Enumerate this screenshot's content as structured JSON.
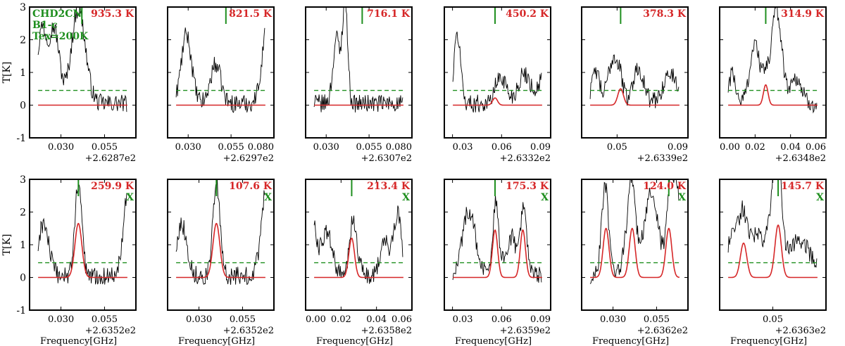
{
  "figure": {
    "annotation_lines": [
      "CHD2CN",
      "B1-c",
      "Tex=200K"
    ],
    "annotation_color": "#1f8f1f",
    "model_color": "#d62728",
    "noise_color": "#1f8f1f",
    "data_color": "#000000",
    "ylabel": "T[K]",
    "xlabel": "Frequency[GHz]",
    "excluded_mark": "X"
  },
  "chart_data": [
    {
      "type": "line",
      "energy": "935.3 K",
      "excluded": false,
      "xlim": [
        0.012,
        0.073
      ],
      "xticks": [
        0.03,
        0.055
      ],
      "xtick_labels": [
        "0.030",
        "0.055"
      ],
      "offset": "+2.6287e2",
      "ylim": [
        -1,
        3
      ],
      "yticks": [
        -1,
        0,
        1,
        2,
        3
      ],
      "noise_level": 0.45,
      "line_marker_x": 0.042,
      "model": [],
      "spectrum_profile": "n1"
    },
    {
      "type": "line",
      "energy": "821.5 K",
      "excluded": false,
      "xlim": [
        0.018,
        0.08
      ],
      "xticks": [
        0.03,
        0.055,
        0.08
      ],
      "xtick_labels": [
        "0.030",
        "0.055",
        "0.080"
      ],
      "offset": "+2.6297e2",
      "ylim": [
        -1,
        3
      ],
      "yticks": [
        -1,
        0,
        1,
        2,
        3
      ],
      "noise_level": 0.45,
      "line_marker_x": 0.052,
      "model": [],
      "spectrum_profile": "n2"
    },
    {
      "type": "line",
      "energy": "716.1 K",
      "excluded": false,
      "xlim": [
        0.018,
        0.08
      ],
      "xticks": [
        0.03,
        0.055,
        0.08
      ],
      "xtick_labels": [
        "0.030",
        "0.055",
        "0.080"
      ],
      "offset": "+2.6307e2",
      "ylim": [
        -1,
        3
      ],
      "yticks": [
        -1,
        0,
        1,
        2,
        3
      ],
      "noise_level": 0.45,
      "line_marker_x": 0.051,
      "model": [],
      "spectrum_profile": "n3"
    },
    {
      "type": "line",
      "energy": "450.2 K",
      "excluded": false,
      "xlim": [
        0.025,
        0.09
      ],
      "xticks": [
        0.03,
        0.06,
        0.09
      ],
      "xtick_labels": [
        "0.03",
        "0.06",
        "0.09"
      ],
      "offset": "+2.6332e2",
      "ylim": [
        -1,
        3
      ],
      "yticks": [
        -1,
        0,
        1,
        2,
        3
      ],
      "noise_level": 0.45,
      "line_marker_x": 0.056,
      "model": [
        {
          "center": 0.056,
          "height": 0.22,
          "sigma": 0.0015
        }
      ],
      "spectrum_profile": "n4"
    },
    {
      "type": "line",
      "energy": "378.3 K",
      "excluded": false,
      "xlim": [
        0.03,
        0.09
      ],
      "xticks": [
        0.05,
        0.09
      ],
      "xtick_labels": [
        "0.05",
        "0.09"
      ],
      "offset": "+2.6339e2",
      "ylim": [
        -1,
        3
      ],
      "yticks": [
        -1,
        0,
        1,
        2,
        3
      ],
      "noise_level": 0.45,
      "line_marker_x": 0.052,
      "model": [
        {
          "center": 0.052,
          "height": 0.5,
          "sigma": 0.0016
        }
      ],
      "spectrum_profile": "n5"
    },
    {
      "type": "line",
      "energy": "314.9 K",
      "excluded": false,
      "xlim": [
        0.0,
        0.06
      ],
      "xticks": [
        0.0,
        0.02,
        0.04,
        0.06
      ],
      "xtick_labels": [
        "0.00",
        "0.02",
        "0.04",
        "0.06"
      ],
      "offset": "+2.6348e2",
      "ylim": [
        -1,
        3
      ],
      "yticks": [
        -1,
        0,
        1,
        2,
        3
      ],
      "noise_level": 0.45,
      "line_marker_x": 0.026,
      "model": [
        {
          "center": 0.026,
          "height": 0.62,
          "sigma": 0.0013
        }
      ],
      "spectrum_profile": "n6"
    },
    {
      "type": "line",
      "energy": "259.9 K",
      "excluded": true,
      "xlim": [
        0.012,
        0.073
      ],
      "xticks": [
        0.03,
        0.055
      ],
      "xtick_labels": [
        "0.030",
        "0.055"
      ],
      "offset": "+2.6352e2",
      "ylim": [
        -1,
        3
      ],
      "yticks": [
        -1,
        0,
        1,
        2,
        3
      ],
      "noise_level": 0.45,
      "line_marker_x": 0.04,
      "model": [
        {
          "center": 0.04,
          "height": 1.65,
          "sigma": 0.002
        }
      ],
      "spectrum_profile": "n7"
    },
    {
      "type": "line",
      "energy": "107.6 K",
      "excluded": true,
      "xlim": [
        0.012,
        0.073
      ],
      "xticks": [
        0.03,
        0.055
      ],
      "xtick_labels": [
        "0.030",
        "0.055"
      ],
      "offset": "+2.6352e2",
      "ylim": [
        -1,
        3
      ],
      "yticks": [
        -1,
        0,
        1,
        2,
        3
      ],
      "noise_level": 0.45,
      "line_marker_x": 0.04,
      "model": [
        {
          "center": 0.04,
          "height": 1.65,
          "sigma": 0.002
        }
      ],
      "spectrum_profile": "n7"
    },
    {
      "type": "line",
      "energy": "213.4 K",
      "excluded": true,
      "xlim": [
        0.0,
        0.06
      ],
      "xticks": [
        0.0,
        0.02,
        0.04,
        0.06
      ],
      "xtick_labels": [
        "0.00",
        "0.02",
        "0.04",
        "0.06"
      ],
      "offset": "+2.6358e2",
      "ylim": [
        -1,
        3
      ],
      "yticks": [
        -1,
        0,
        1,
        2,
        3
      ],
      "noise_level": 0.45,
      "line_marker_x": 0.026,
      "model": [
        {
          "center": 0.026,
          "height": 1.2,
          "sigma": 0.0016
        }
      ],
      "spectrum_profile": "n9"
    },
    {
      "type": "line",
      "energy": "175.3 K",
      "excluded": true,
      "xlim": [
        0.025,
        0.09
      ],
      "xticks": [
        0.03,
        0.06,
        0.09
      ],
      "xtick_labels": [
        "0.03",
        "0.06",
        "0.09"
      ],
      "offset": "+2.6359e2",
      "ylim": [
        -1,
        3
      ],
      "yticks": [
        -1,
        0,
        1,
        2,
        3
      ],
      "noise_level": 0.45,
      "line_marker_x": 0.056,
      "model": [
        {
          "center": 0.056,
          "height": 1.45,
          "sigma": 0.0016
        },
        {
          "center": 0.073,
          "height": 1.45,
          "sigma": 0.0016
        }
      ],
      "spectrum_profile": "n10"
    },
    {
      "type": "line",
      "energy": "124.0 K",
      "excluded": true,
      "xlim": [
        0.012,
        0.073
      ],
      "xticks": [
        0.03,
        0.055
      ],
      "xtick_labels": [
        "0.030",
        "0.055"
      ],
      "offset": "+2.6362e2",
      "ylim": [
        -1,
        3
      ],
      "yticks": [
        -1,
        0,
        1,
        2,
        3
      ],
      "noise_level": 0.45,
      "line_marker_x": 0.062,
      "model": [
        {
          "center": 0.026,
          "height": 1.5,
          "sigma": 0.0017
        },
        {
          "center": 0.041,
          "height": 1.5,
          "sigma": 0.0017
        },
        {
          "center": 0.062,
          "height": 1.5,
          "sigma": 0.0017
        }
      ],
      "spectrum_profile": "n11"
    },
    {
      "type": "line",
      "energy": "145.7 K",
      "excluded": true,
      "xlim": [
        0.03,
        0.07
      ],
      "xticks": [
        0.05
      ],
      "xtick_labels": [
        "0.05"
      ],
      "offset": "+2.6363e2",
      "ylim": [
        -1,
        3
      ],
      "yticks": [
        -1,
        0,
        1,
        2,
        3
      ],
      "noise_level": 0.45,
      "line_marker_x": 0.052,
      "model": [
        {
          "center": 0.039,
          "height": 1.05,
          "sigma": 0.0012
        },
        {
          "center": 0.052,
          "height": 1.6,
          "sigma": 0.0012
        }
      ],
      "spectrum_profile": "n12"
    }
  ]
}
